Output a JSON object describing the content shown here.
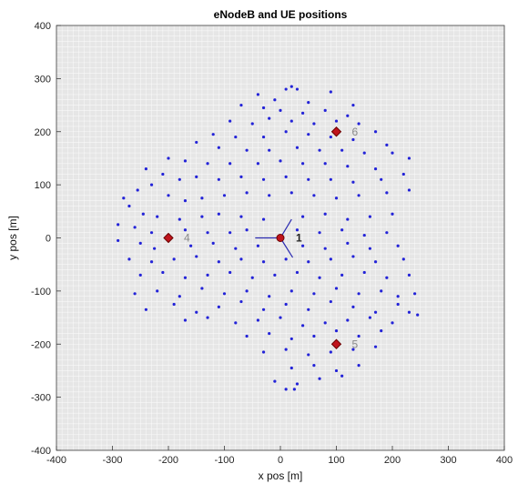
{
  "chart_data": {
    "type": "scatter",
    "title": "eNodeB and UE positions",
    "xlabel": "x pos [m]",
    "ylabel": "y pos [m]",
    "xlim": [
      -400,
      400
    ],
    "ylim": [
      -400,
      400
    ],
    "xticks": [
      -400,
      -300,
      -200,
      -100,
      0,
      100,
      200,
      300,
      400
    ],
    "yticks": [
      -400,
      -300,
      -200,
      -100,
      0,
      100,
      200,
      300,
      400
    ],
    "grid": true,
    "colors": {
      "background": "#e6e6e6",
      "grid": "#ffffff",
      "ue": "#2323d8",
      "enodeb": "#c0141c",
      "enodeb_edge": "#6b0000",
      "sector_line": "#2b2bb0"
    },
    "enodebs": [
      {
        "label": "1",
        "x": 0,
        "y": 0,
        "shape": "circle",
        "label_style": "dark"
      },
      {
        "label": "4",
        "x": -200,
        "y": 0,
        "shape": "diamond",
        "label_style": "light"
      },
      {
        "label": "6",
        "x": 100,
        "y": 200,
        "shape": "diamond",
        "label_style": "light"
      },
      {
        "label": "5",
        "x": 100,
        "y": -200,
        "shape": "diamond",
        "label_style": "light"
      }
    ],
    "sector_lines": [
      {
        "x": [
          0,
          -45
        ],
        "y": [
          0,
          0
        ]
      },
      {
        "x": [
          0,
          20
        ],
        "y": [
          0,
          35
        ]
      },
      {
        "x": [
          0,
          22
        ],
        "y": [
          0,
          -37
        ]
      }
    ],
    "ue_points": [
      [
        10,
        280
      ],
      [
        20,
        285
      ],
      [
        30,
        280
      ],
      [
        -40,
        270
      ],
      [
        -10,
        260
      ],
      [
        50,
        255
      ],
      [
        90,
        275
      ],
      [
        -70,
        250
      ],
      [
        130,
        250
      ],
      [
        -30,
        245
      ],
      [
        0,
        240
      ],
      [
        40,
        235
      ],
      [
        80,
        240
      ],
      [
        120,
        230
      ],
      [
        -90,
        220
      ],
      [
        -50,
        215
      ],
      [
        -20,
        225
      ],
      [
        20,
        220
      ],
      [
        60,
        215
      ],
      [
        100,
        220
      ],
      [
        140,
        215
      ],
      [
        170,
        200
      ],
      [
        -120,
        195
      ],
      [
        -80,
        190
      ],
      [
        -30,
        190
      ],
      [
        10,
        200
      ],
      [
        50,
        195
      ],
      [
        90,
        190
      ],
      [
        130,
        185
      ],
      [
        190,
        175
      ],
      [
        -150,
        180
      ],
      [
        -110,
        170
      ],
      [
        -60,
        165
      ],
      [
        -20,
        165
      ],
      [
        30,
        170
      ],
      [
        70,
        165
      ],
      [
        110,
        165
      ],
      [
        150,
        160
      ],
      [
        200,
        160
      ],
      [
        -200,
        150
      ],
      [
        -170,
        145
      ],
      [
        -130,
        140
      ],
      [
        -90,
        140
      ],
      [
        -40,
        140
      ],
      [
        0,
        145
      ],
      [
        40,
        140
      ],
      [
        80,
        140
      ],
      [
        120,
        135
      ],
      [
        170,
        130
      ],
      [
        230,
        150
      ],
      [
        -240,
        130
      ],
      [
        -210,
        120
      ],
      [
        -180,
        110
      ],
      [
        -150,
        115
      ],
      [
        -110,
        110
      ],
      [
        -70,
        115
      ],
      [
        -30,
        110
      ],
      [
        10,
        115
      ],
      [
        50,
        110
      ],
      [
        90,
        110
      ],
      [
        130,
        105
      ],
      [
        180,
        110
      ],
      [
        220,
        120
      ],
      [
        -280,
        75
      ],
      [
        -255,
        90
      ],
      [
        -230,
        100
      ],
      [
        -200,
        80
      ],
      [
        -170,
        70
      ],
      [
        -140,
        75
      ],
      [
        -100,
        80
      ],
      [
        -60,
        85
      ],
      [
        -20,
        80
      ],
      [
        20,
        85
      ],
      [
        60,
        80
      ],
      [
        100,
        75
      ],
      [
        140,
        80
      ],
      [
        190,
        85
      ],
      [
        230,
        90
      ],
      [
        -270,
        60
      ],
      [
        -245,
        45
      ],
      [
        -220,
        40
      ],
      [
        -180,
        35
      ],
      [
        -140,
        40
      ],
      [
        -110,
        45
      ],
      [
        -70,
        40
      ],
      [
        -30,
        35
      ],
      [
        40,
        40
      ],
      [
        80,
        45
      ],
      [
        120,
        35
      ],
      [
        160,
        40
      ],
      [
        200,
        45
      ],
      [
        -290,
        25
      ],
      [
        -260,
        20
      ],
      [
        -230,
        10
      ],
      [
        -170,
        15
      ],
      [
        -130,
        10
      ],
      [
        -90,
        10
      ],
      [
        -60,
        15
      ],
      [
        30,
        15
      ],
      [
        70,
        10
      ],
      [
        110,
        15
      ],
      [
        150,
        5
      ],
      [
        190,
        10
      ],
      [
        -290,
        -5
      ],
      [
        -250,
        -10
      ],
      [
        -225,
        -20
      ],
      [
        -160,
        -15
      ],
      [
        -120,
        -10
      ],
      [
        -80,
        -20
      ],
      [
        -40,
        -15
      ],
      [
        40,
        -15
      ],
      [
        80,
        -20
      ],
      [
        120,
        -10
      ],
      [
        160,
        -20
      ],
      [
        210,
        -15
      ],
      [
        -270,
        -40
      ],
      [
        -230,
        -45
      ],
      [
        -190,
        -40
      ],
      [
        -150,
        -35
      ],
      [
        -110,
        -45
      ],
      [
        -70,
        -40
      ],
      [
        -30,
        -45
      ],
      [
        10,
        -40
      ],
      [
        50,
        -45
      ],
      [
        90,
        -40
      ],
      [
        130,
        -35
      ],
      [
        170,
        -45
      ],
      [
        220,
        -40
      ],
      [
        -250,
        -70
      ],
      [
        -210,
        -65
      ],
      [
        -170,
        -75
      ],
      [
        -130,
        -70
      ],
      [
        -90,
        -65
      ],
      [
        -50,
        -75
      ],
      [
        -10,
        -70
      ],
      [
        30,
        -65
      ],
      [
        70,
        -75
      ],
      [
        110,
        -70
      ],
      [
        150,
        -65
      ],
      [
        190,
        -75
      ],
      [
        230,
        -70
      ],
      [
        -260,
        -105
      ],
      [
        -220,
        -100
      ],
      [
        -180,
        -110
      ],
      [
        -140,
        -95
      ],
      [
        -100,
        -105
      ],
      [
        -60,
        -100
      ],
      [
        -20,
        -110
      ],
      [
        20,
        -100
      ],
      [
        60,
        -105
      ],
      [
        100,
        -95
      ],
      [
        140,
        -105
      ],
      [
        180,
        -100
      ],
      [
        210,
        -110
      ],
      [
        240,
        -105
      ],
      [
        -240,
        -135
      ],
      [
        -190,
        -125
      ],
      [
        -150,
        -140
      ],
      [
        -110,
        -130
      ],
      [
        -70,
        -120
      ],
      [
        -30,
        -135
      ],
      [
        10,
        -125
      ],
      [
        50,
        -135
      ],
      [
        90,
        -120
      ],
      [
        130,
        -130
      ],
      [
        170,
        -140
      ],
      [
        210,
        -125
      ],
      [
        230,
        -140
      ],
      [
        245,
        -145
      ],
      [
        -170,
        -155
      ],
      [
        -130,
        -150
      ],
      [
        -80,
        -160
      ],
      [
        -40,
        -155
      ],
      [
        0,
        -150
      ],
      [
        40,
        -165
      ],
      [
        80,
        -160
      ],
      [
        120,
        -155
      ],
      [
        160,
        -150
      ],
      [
        200,
        -160
      ],
      [
        -60,
        -185
      ],
      [
        -20,
        -180
      ],
      [
        20,
        -190
      ],
      [
        60,
        -185
      ],
      [
        100,
        -175
      ],
      [
        140,
        -185
      ],
      [
        180,
        -175
      ],
      [
        -30,
        -215
      ],
      [
        10,
        -210
      ],
      [
        50,
        -220
      ],
      [
        90,
        -215
      ],
      [
        130,
        -210
      ],
      [
        170,
        -205
      ],
      [
        20,
        -245
      ],
      [
        60,
        -240
      ],
      [
        100,
        -250
      ],
      [
        140,
        -240
      ],
      [
        -10,
        -270
      ],
      [
        30,
        -275
      ],
      [
        70,
        -265
      ],
      [
        110,
        -260
      ],
      [
        10,
        -285
      ],
      [
        25,
        -285
      ]
    ]
  }
}
